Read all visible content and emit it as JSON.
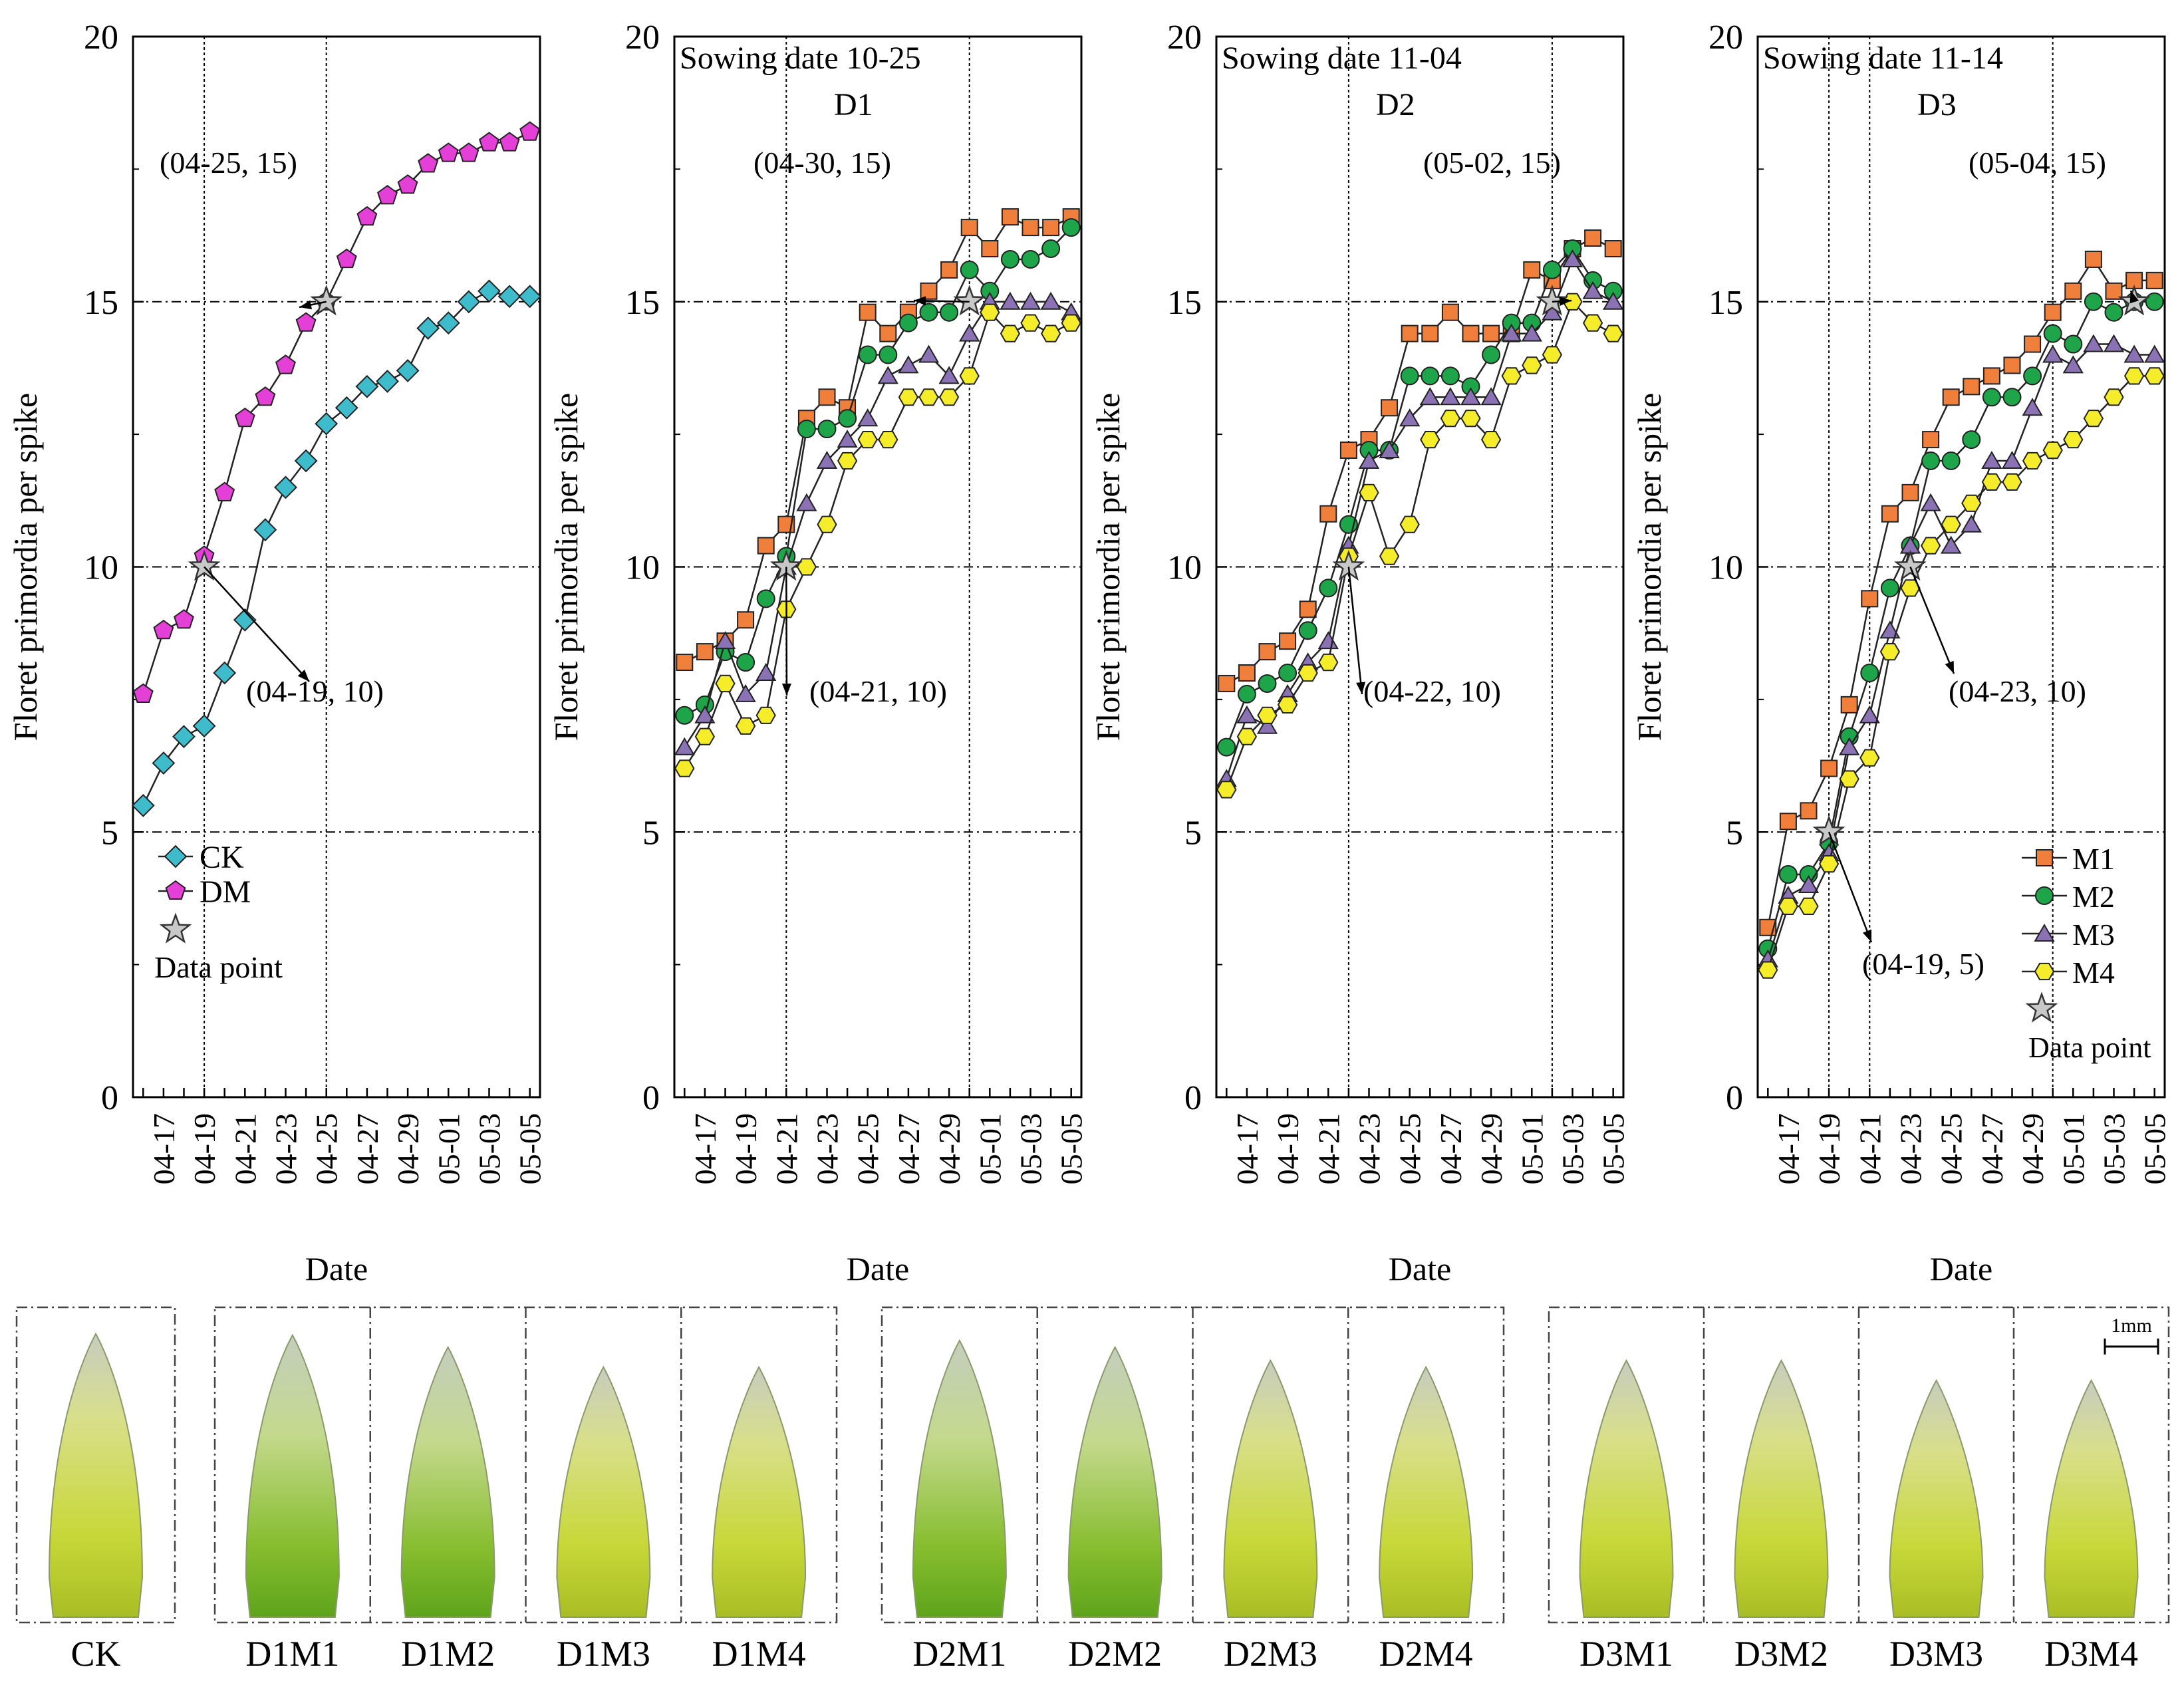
{
  "figure": {
    "ylabel": "Floret primordia per spike",
    "xlabel": "Date",
    "y_ticks": [
      "0",
      "5",
      "10",
      "15",
      "20"
    ],
    "dates": [
      "04-16",
      "04-17",
      "04-18",
      "04-19",
      "04-20",
      "04-21",
      "04-22",
      "04-23",
      "04-24",
      "04-25",
      "04-26",
      "04-27",
      "04-28",
      "04-29",
      "04-30",
      "05-01",
      "05-02",
      "05-03",
      "05-04",
      "05-05"
    ],
    "x_tick_labels": [
      "04-17",
      "04-19",
      "04-21",
      "04-23",
      "04-25",
      "04-27",
      "04-29",
      "05-01",
      "05-03",
      "05-05"
    ],
    "data_point_label": "Data point"
  },
  "chart_data": [
    {
      "type": "line",
      "panel": "CK vs DM",
      "title": "",
      "subtitle": "",
      "xlabel": "Date",
      "ylabel": "Floret primordia per spike",
      "ylim": [
        0,
        20
      ],
      "x": [
        "04-16",
        "04-17",
        "04-18",
        "04-19",
        "04-20",
        "04-21",
        "04-22",
        "04-23",
        "04-24",
        "04-25",
        "04-26",
        "04-27",
        "04-28",
        "04-29",
        "04-30",
        "05-01",
        "05-02",
        "05-03",
        "05-04",
        "05-05"
      ],
      "series": [
        {
          "name": "CK",
          "marker": "diamond",
          "color": "#3fbccc",
          "values": [
            5.5,
            6.3,
            6.8,
            7.0,
            8.0,
            9.0,
            10.7,
            11.5,
            12.0,
            12.7,
            13.0,
            13.4,
            13.5,
            13.7,
            14.5,
            14.6,
            15.0,
            15.2,
            15.1,
            15.1
          ]
        },
        {
          "name": "DM",
          "marker": "pentagon",
          "color": "#e43fd6",
          "values": [
            7.6,
            8.8,
            9.0,
            10.2,
            11.4,
            12.8,
            13.2,
            13.8,
            14.6,
            15.0,
            15.8,
            16.6,
            17.0,
            17.2,
            17.6,
            17.8,
            17.8,
            18.0,
            18.0,
            18.2
          ]
        }
      ],
      "vlines": [
        3,
        9
      ],
      "stars": [
        {
          "x": 3,
          "y": 10
        },
        {
          "x": 9,
          "y": 15
        }
      ],
      "annotations": [
        {
          "text": "(04-25, 15)",
          "x": 9,
          "y": 15
        },
        {
          "text": "(04-19, 10)",
          "x": 3,
          "y": 10
        }
      ],
      "legend": {
        "position": "bottom-left",
        "show_data_point": true
      }
    },
    {
      "type": "line",
      "panel": "D1",
      "title": "D1",
      "subtitle": "Sowing date 10-25",
      "xlabel": "Date",
      "ylabel": "Floret primordia per spike",
      "ylim": [
        0,
        20
      ],
      "x": [
        "04-16",
        "04-17",
        "04-18",
        "04-19",
        "04-20",
        "04-21",
        "04-22",
        "04-23",
        "04-24",
        "04-25",
        "04-26",
        "04-27",
        "04-28",
        "04-29",
        "04-30",
        "05-01",
        "05-02",
        "05-03",
        "05-04",
        "05-05"
      ],
      "series": [
        {
          "name": "M1",
          "marker": "square",
          "color": "#f07f3c",
          "values": [
            8.2,
            8.4,
            8.6,
            9.0,
            10.4,
            10.8,
            12.8,
            13.2,
            13.0,
            14.8,
            14.4,
            14.8,
            15.2,
            15.6,
            16.4,
            16.0,
            16.6,
            16.4,
            16.4,
            16.6
          ]
        },
        {
          "name": "M2",
          "marker": "circle",
          "color": "#1ea54a",
          "values": [
            7.2,
            7.4,
            8.4,
            8.2,
            9.4,
            10.2,
            12.6,
            12.6,
            12.8,
            14.0,
            14.0,
            14.6,
            14.8,
            14.8,
            15.6,
            15.2,
            15.8,
            15.8,
            16.0,
            16.4
          ]
        },
        {
          "name": "M3",
          "marker": "triangle",
          "color": "#8a72b4",
          "values": [
            6.6,
            7.2,
            8.6,
            7.6,
            8.0,
            10.0,
            11.2,
            12.0,
            12.4,
            12.8,
            13.6,
            13.8,
            14.0,
            13.6,
            14.4,
            15.0,
            15.0,
            15.0,
            15.0,
            14.8
          ]
        },
        {
          "name": "M4",
          "marker": "hexagon",
          "color": "#f5ec2a",
          "values": [
            6.2,
            6.8,
            7.8,
            7.0,
            7.2,
            9.2,
            10.0,
            10.8,
            12.0,
            12.4,
            12.4,
            13.2,
            13.2,
            13.2,
            13.6,
            14.8,
            14.4,
            14.6,
            14.4,
            14.6
          ]
        }
      ],
      "vlines": [
        5,
        14
      ],
      "stars": [
        {
          "x": 5,
          "y": 10
        },
        {
          "x": 14,
          "y": 15
        }
      ],
      "annotations": [
        {
          "text": "(04-30, 15)",
          "x": 14,
          "y": 15
        },
        {
          "text": "(04-21, 10)",
          "x": 5,
          "y": 10
        }
      ],
      "legend": null
    },
    {
      "type": "line",
      "panel": "D2",
      "title": "D2",
      "subtitle": "Sowing date 11-04",
      "xlabel": "Date",
      "ylabel": "Floret primordia per spike",
      "ylim": [
        0,
        20
      ],
      "x": [
        "04-16",
        "04-17",
        "04-18",
        "04-19",
        "04-20",
        "04-21",
        "04-22",
        "04-23",
        "04-24",
        "04-25",
        "04-26",
        "04-27",
        "04-28",
        "04-29",
        "04-30",
        "05-01",
        "05-02",
        "05-03",
        "05-04",
        "05-05"
      ],
      "series": [
        {
          "name": "M1",
          "marker": "square",
          "color": "#f07f3c",
          "values": [
            7.8,
            8.0,
            8.4,
            8.6,
            9.2,
            11.0,
            12.2,
            12.4,
            13.0,
            14.4,
            14.4,
            14.8,
            14.4,
            14.4,
            14.4,
            15.6,
            15.4,
            16.0,
            16.2,
            16.0
          ]
        },
        {
          "name": "M2",
          "marker": "circle",
          "color": "#1ea54a",
          "values": [
            6.6,
            7.6,
            7.8,
            8.0,
            8.8,
            9.6,
            10.8,
            12.2,
            12.2,
            13.6,
            13.6,
            13.6,
            13.4,
            14.0,
            14.6,
            14.6,
            15.6,
            16.0,
            15.4,
            15.2
          ]
        },
        {
          "name": "M3",
          "marker": "triangle",
          "color": "#8a72b4",
          "values": [
            6.0,
            7.2,
            7.0,
            7.6,
            8.2,
            8.6,
            10.4,
            12.0,
            12.2,
            12.8,
            13.2,
            13.2,
            13.2,
            13.2,
            14.4,
            14.4,
            14.8,
            15.8,
            15.2,
            15.0
          ]
        },
        {
          "name": "M4",
          "marker": "hexagon",
          "color": "#f5ec2a",
          "values": [
            5.8,
            6.8,
            7.2,
            7.4,
            8.0,
            8.2,
            10.2,
            11.4,
            10.2,
            10.8,
            12.4,
            12.8,
            12.8,
            12.4,
            13.6,
            13.8,
            14.0,
            15.0,
            14.6,
            14.4
          ]
        }
      ],
      "vlines": [
        6,
        16
      ],
      "stars": [
        {
          "x": 6,
          "y": 10
        },
        {
          "x": 16,
          "y": 15
        }
      ],
      "annotations": [
        {
          "text": "(05-02, 15)",
          "x": 16,
          "y": 15
        },
        {
          "text": "(04-22, 10)",
          "x": 6,
          "y": 10
        }
      ],
      "legend": null
    },
    {
      "type": "line",
      "panel": "D3",
      "title": "D3",
      "subtitle": "Sowing date 11-14",
      "xlabel": "Date",
      "ylabel": "Floret primordia per spike",
      "ylim": [
        0,
        20
      ],
      "x": [
        "04-16",
        "04-17",
        "04-18",
        "04-19",
        "04-20",
        "04-21",
        "04-22",
        "04-23",
        "04-24",
        "04-25",
        "04-26",
        "04-27",
        "04-28",
        "04-29",
        "04-30",
        "05-01",
        "05-02",
        "05-03",
        "05-04",
        "05-05"
      ],
      "series": [
        {
          "name": "M1",
          "marker": "square",
          "color": "#f07f3c",
          "values": [
            3.2,
            5.2,
            5.4,
            6.2,
            7.4,
            9.4,
            11.0,
            11.4,
            12.4,
            13.2,
            13.4,
            13.6,
            13.8,
            14.2,
            14.8,
            15.2,
            15.8,
            15.2,
            15.4,
            15.4
          ]
        },
        {
          "name": "M2",
          "marker": "circle",
          "color": "#1ea54a",
          "values": [
            2.8,
            4.2,
            4.2,
            4.8,
            6.8,
            8.0,
            9.6,
            10.4,
            12.0,
            12.0,
            12.4,
            13.2,
            13.2,
            13.6,
            14.4,
            14.2,
            15.0,
            14.8,
            15.0,
            15.0
          ]
        },
        {
          "name": "M3",
          "marker": "triangle",
          "color": "#8a72b4",
          "values": [
            2.6,
            3.8,
            4.0,
            4.6,
            6.6,
            7.2,
            8.8,
            10.4,
            11.2,
            10.4,
            10.8,
            12.0,
            12.0,
            13.0,
            14.0,
            13.8,
            14.2,
            14.2,
            14.0,
            14.0
          ]
        },
        {
          "name": "M4",
          "marker": "hexagon",
          "color": "#f5ec2a",
          "values": [
            2.4,
            3.6,
            3.6,
            4.4,
            6.0,
            6.4,
            8.4,
            9.6,
            10.4,
            10.8,
            11.2,
            11.6,
            11.6,
            12.0,
            12.2,
            12.4,
            12.8,
            13.2,
            13.6,
            13.6
          ]
        }
      ],
      "vlines": [
        3,
        5,
        14
      ],
      "stars": [
        {
          "x": 3,
          "y": 5
        },
        {
          "x": 7,
          "y": 10
        },
        {
          "x": 18,
          "y": 15
        }
      ],
      "annotations": [
        {
          "text": "(05-04, 15)",
          "x": 18,
          "y": 15
        },
        {
          "text": "(04-23, 10)",
          "x": 7,
          "y": 10
        },
        {
          "text": "(04-19, 5)",
          "x": 3,
          "y": 5
        }
      ],
      "legend": {
        "position": "bottom-right",
        "show_data_point": true
      }
    }
  ],
  "spike_photos": {
    "scale_bar_label": "1mm",
    "groups": [
      {
        "labels": [
          "CK"
        ]
      },
      {
        "labels": [
          "D1M1",
          "D1M2",
          "D1M3",
          "D1M4"
        ]
      },
      {
        "labels": [
          "D2M1",
          "D2M2",
          "D2M3",
          "D2M4"
        ]
      },
      {
        "labels": [
          "D3M1",
          "D3M2",
          "D3M3",
          "D3M4"
        ]
      }
    ]
  }
}
